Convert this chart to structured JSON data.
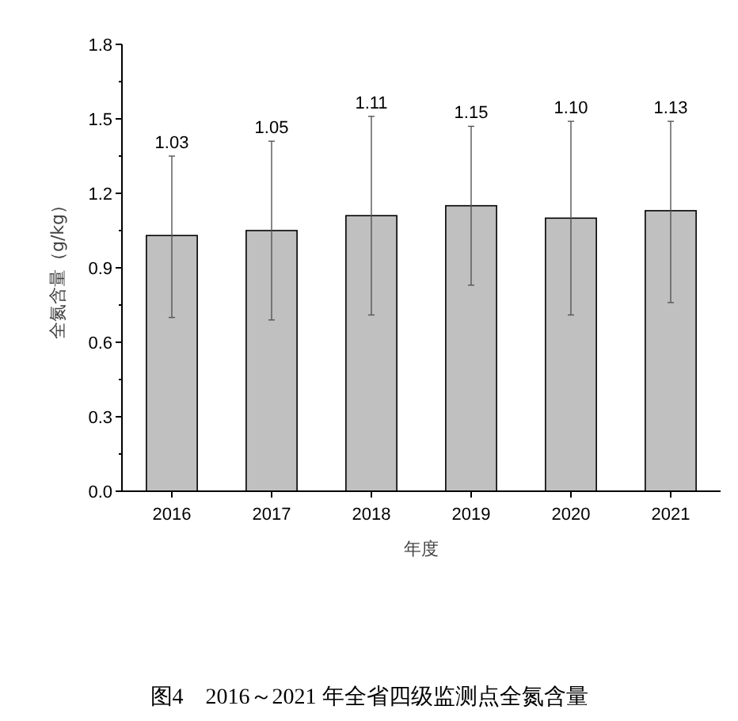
{
  "chart_data": {
    "type": "bar",
    "xlabel": "年度",
    "ylabel": "全氮含量（g/kg）",
    "categories": [
      "2016",
      "2017",
      "2018",
      "2019",
      "2020",
      "2021"
    ],
    "values": [
      1.03,
      1.05,
      1.11,
      1.15,
      1.1,
      1.13
    ],
    "errors": [
      [
        0.7,
        1.35
      ],
      [
        0.69,
        1.41
      ],
      [
        0.71,
        1.51
      ],
      [
        0.83,
        1.47
      ],
      [
        0.71,
        1.49
      ],
      [
        0.76,
        1.49
      ]
    ],
    "color": "#c0c0c0",
    "grid": false,
    "ylim": [
      0,
      1.8
    ],
    "yticks": [
      {
        "value": 0,
        "label": "0.0"
      },
      {
        "value": 0.15,
        "label": null
      },
      {
        "value": 0.3,
        "label": "0.3"
      },
      {
        "value": 0.45,
        "label": null
      },
      {
        "value": 0.6,
        "label": "0.6"
      },
      {
        "value": 0.75,
        "label": null
      },
      {
        "value": 0.9,
        "label": "0.9"
      },
      {
        "value": 1.05,
        "label": null
      },
      {
        "value": 1.2,
        "label": "1.2"
      },
      {
        "value": 1.35,
        "label": null
      },
      {
        "value": 1.5,
        "label": "1.5"
      },
      {
        "value": 1.65,
        "label": null
      },
      {
        "value": 1.8,
        "label": "1.8"
      }
    ],
    "annotations": [
      {
        "text": "1.03",
        "x": "2016",
        "y": 1.35
      },
      {
        "text": "1.05",
        "x": "2017",
        "y": 1.41
      },
      {
        "text": "1.11",
        "x": "2018",
        "y": 1.51
      },
      {
        "text": "1.15",
        "x": "2019",
        "y": 1.47
      },
      {
        "text": "1.10",
        "x": "2020",
        "y": 1.49
      },
      {
        "text": "1.13",
        "x": "2021",
        "y": 1.49
      },
      "图4　2016～2021 年全省四级监测点全氮含量"
    ]
  }
}
